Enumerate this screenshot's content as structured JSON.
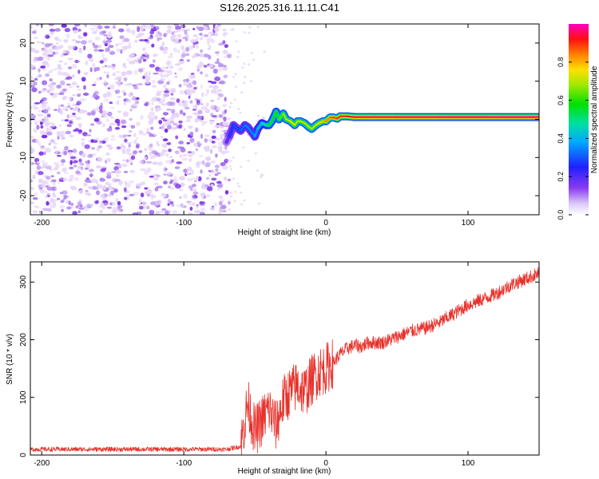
{
  "figure": {
    "title": "S126.2025.316.11.11.C41"
  },
  "colors": {
    "snr_line": "#e8302a",
    "scatter_light": "#e6d4f8",
    "scatter_mid": "#b48cf0",
    "scatter_dark": "#7a30e8",
    "axis": "#000000"
  },
  "chart_data": [
    {
      "type": "heatmap",
      "title": "S126.2025.316.11.11.C41",
      "xlabel": "Height of straight line (km)",
      "ylabel": "Frequency (Hz)",
      "xlim": [
        -208,
        150
      ],
      "ylim": [
        -25,
        25
      ],
      "xticks": [
        -200,
        -100,
        0,
        100
      ],
      "xtick_labels": [
        "-200",
        "-100",
        "0",
        "100"
      ],
      "yticks": [
        -20,
        -10,
        0,
        10,
        20
      ],
      "ytick_labels": [
        "-20",
        "-10",
        "0",
        "10",
        "20"
      ],
      "noise_region_x": [
        -208,
        -68
      ],
      "signal_track": {
        "x": [
          -70,
          -68,
          -65,
          -62,
          -60,
          -57,
          -55,
          -52,
          -50,
          -48,
          -45,
          -42,
          -40,
          -38,
          -35,
          -33,
          -30,
          -28,
          -25,
          -22,
          -20,
          -18,
          -15,
          -12,
          -10,
          -7,
          -5,
          -2,
          0,
          3,
          5,
          8,
          10,
          15,
          20,
          30,
          50,
          80,
          120,
          150
        ],
        "freq": [
          -6,
          -4.5,
          -1.5,
          -2.5,
          -3,
          -1.5,
          -2,
          -3.5,
          -4.5,
          -2.5,
          -1,
          -1.5,
          -1.5,
          -0.5,
          2,
          0,
          1.5,
          0,
          -0.5,
          -1.5,
          -0.5,
          -0.5,
          -1,
          -2,
          -2.5,
          -1.5,
          -1,
          -0.5,
          -0.5,
          0.5,
          0.5,
          0.2,
          0.8,
          0.8,
          0.6,
          0.6,
          0.6,
          0.6,
          0.6,
          0.6
        ],
        "amplitude": [
          0.15,
          0.25,
          0.3,
          0.3,
          0.3,
          0.35,
          0.35,
          0.35,
          0.35,
          0.4,
          0.45,
          0.5,
          0.55,
          0.6,
          0.55,
          0.6,
          0.65,
          0.7,
          0.75,
          0.75,
          0.7,
          0.7,
          0.72,
          0.7,
          0.7,
          0.72,
          0.75,
          0.8,
          0.82,
          0.85,
          0.88,
          0.9,
          0.9,
          0.92,
          0.94,
          0.95,
          0.96,
          0.97,
          0.98,
          0.98
        ]
      },
      "colorbar": {
        "label": "Normalized spectral amplitude",
        "range": [
          0,
          1
        ],
        "ticks": [
          0.0,
          0.2,
          0.4,
          0.6,
          0.8
        ],
        "tick_labels": [
          "0.0",
          "0.2",
          "0.4",
          "0.6",
          "0.8"
        ]
      }
    },
    {
      "type": "line",
      "title": "",
      "xlabel": "Height of straight line (km)",
      "ylabel": "SNR (10 * v/v)",
      "xlim": [
        -208,
        150
      ],
      "ylim": [
        0,
        335
      ],
      "xticks": [
        -200,
        -100,
        0,
        100
      ],
      "xtick_labels": [
        "-200",
        "-100",
        "0",
        "100"
      ],
      "yticks": [
        0,
        100,
        200,
        300
      ],
      "ytick_labels": [
        "0",
        "100",
        "200",
        "300"
      ],
      "series": [
        {
          "name": "SNR",
          "x": [
            -208,
            -150,
            -100,
            -70,
            -60,
            -57,
            -55,
            -50,
            -45,
            -40,
            -35,
            -30,
            -25,
            -20,
            -15,
            -10,
            -5,
            0,
            5,
            10,
            15,
            20,
            25,
            30,
            40,
            50,
            60,
            70,
            80,
            90,
            100,
            110,
            120,
            130,
            140,
            150
          ],
          "y": [
            10,
            10,
            10,
            10,
            15,
            60,
            90,
            40,
            60,
            80,
            50,
            95,
            110,
            120,
            110,
            130,
            145,
            150,
            160,
            175,
            185,
            190,
            188,
            195,
            195,
            205,
            215,
            220,
            230,
            245,
            260,
            270,
            280,
            295,
            305,
            315
          ]
        }
      ]
    }
  ]
}
